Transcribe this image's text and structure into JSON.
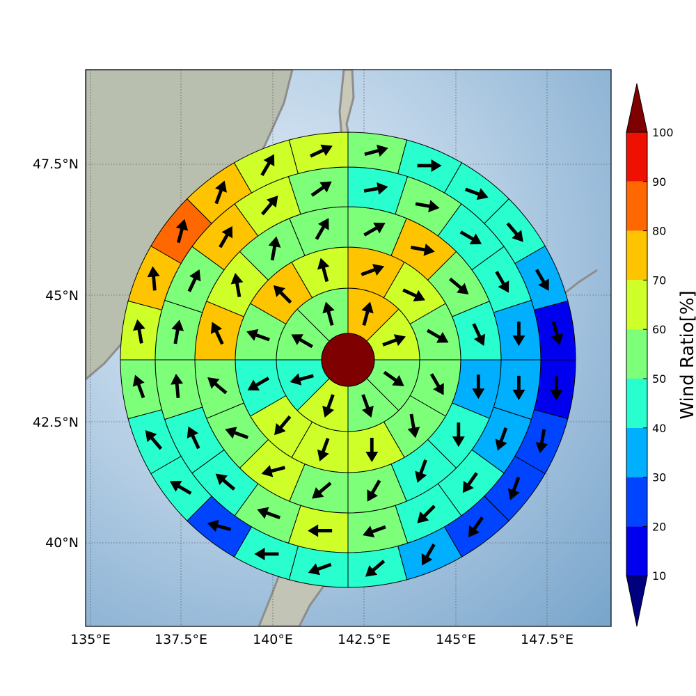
{
  "chart_data": {
    "type": "heatmap",
    "subtype": "polar wind-ratio map with direction arrows over a shaded-relief map",
    "colorbar": {
      "label": "Wind Ratio[%]",
      "ticks": [
        "10",
        "20",
        "30",
        "40",
        "50",
        "60",
        "70",
        "80",
        "90",
        "100"
      ],
      "bins": [
        {
          "range": [
            0,
            10
          ],
          "color": "#00007f"
        },
        {
          "range": [
            10,
            20
          ],
          "color": "#0000ee"
        },
        {
          "range": [
            20,
            30
          ],
          "color": "#0044ff"
        },
        {
          "range": [
            30,
            40
          ],
          "color": "#00b0ff"
        },
        {
          "range": [
            40,
            50
          ],
          "color": "#29ffce"
        },
        {
          "range": [
            50,
            60
          ],
          "color": "#7dff7a"
        },
        {
          "range": [
            60,
            70
          ],
          "color": "#ceff29"
        },
        {
          "range": [
            70,
            80
          ],
          "color": "#ffc400"
        },
        {
          "range": [
            80,
            90
          ],
          "color": "#ff6800"
        },
        {
          "range": [
            90,
            100
          ],
          "color": "#ee1000"
        },
        {
          "range": [
            100,
            110
          ],
          "color": "#7f0000"
        }
      ],
      "extend": "both"
    },
    "x_ticks": [
      "135°E",
      "137.5°E",
      "140°E",
      "142.5°E",
      "145°E",
      "147.5°E"
    ],
    "y_ticks": [
      "40°N",
      "42.5°N",
      "45°N",
      "47.5°N"
    ],
    "grid": true,
    "center": {
      "value": 105,
      "lon": 142.5,
      "lat": 44.0
    },
    "rings": [
      {
        "name": "ring1",
        "sectors": 8,
        "values": [
          75,
          60,
          55,
          55,
          60,
          45,
          55,
          55
        ],
        "arrows": [
          15,
          70,
          125,
          160,
          200,
          255,
          300,
          345
        ]
      },
      {
        "name": "ring2",
        "sectors": 12,
        "values": [
          75,
          65,
          55,
          55,
          55,
          65,
          60,
          65,
          45,
          55,
          75,
          65
        ],
        "arrows": [
          70,
          115,
          120,
          150,
          170,
          180,
          200,
          220,
          240,
          290,
          315,
          345
        ]
      },
      {
        "name": "ring3",
        "sectors": 16,
        "values": [
          55,
          75,
          55,
          45,
          35,
          40,
          45,
          50,
          55,
          60,
          55,
          55,
          75,
          65,
          55,
          55
        ],
        "arrows": [
          60,
          100,
          130,
          155,
          180,
          180,
          200,
          210,
          230,
          255,
          290,
          310,
          335,
          350,
          10,
          30
        ]
      },
      {
        "name": "ring4",
        "sectors": 20,
        "values": [
          45,
          55,
          45,
          45,
          35,
          35,
          35,
          45,
          45,
          55,
          65,
          55,
          45,
          45,
          55,
          55,
          55,
          75,
          65,
          55
        ],
        "arrows": [
          80,
          100,
          120,
          150,
          180,
          180,
          200,
          215,
          225,
          250,
          270,
          290,
          310,
          335,
          355,
          10,
          25,
          30,
          40,
          55
        ]
      },
      {
        "name": "ring5",
        "sectors": 24,
        "values": [
          55,
          45,
          45,
          45,
          35,
          15,
          15,
          25,
          25,
          20,
          35,
          45,
          45,
          45,
          20,
          45,
          45,
          55,
          65,
          75,
          85,
          75,
          65,
          65
        ],
        "arrows": [
          75,
          90,
          110,
          140,
          150,
          165,
          180,
          190,
          200,
          215,
          210,
          230,
          250,
          270,
          285,
          300,
          320,
          340,
          350,
          355,
          15,
          20,
          30,
          65
        ]
      }
    ]
  }
}
